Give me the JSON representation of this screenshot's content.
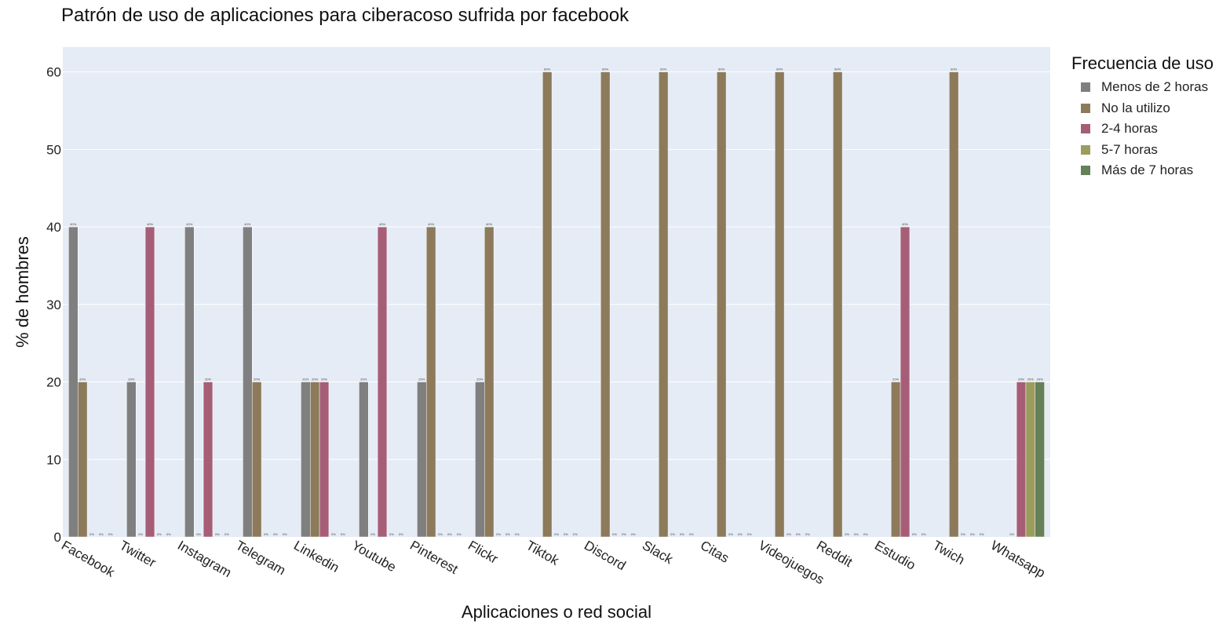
{
  "chart_data": {
    "type": "bar",
    "title": "Patrón de uso de aplicaciones para ciberacoso sufrida por facebook",
    "xlabel": "Aplicaciones o red social",
    "ylabel": "% de hombres",
    "ylim": [
      0,
      63.2
    ],
    "yticks": [
      0,
      10,
      20,
      30,
      40,
      50,
      60
    ],
    "grid": true,
    "legend_title": "Frecuencia de uso",
    "legend_position": "right",
    "categories": [
      "Facebook",
      "Twitter",
      "Instagram",
      "Telegram",
      "Linkedin",
      "Youtube",
      "Pinterest",
      "Flickr",
      "Tiktok",
      "Discord",
      "Slack",
      "Citas",
      "Videojuegos",
      "Reddit",
      "Estudio",
      "Twich",
      "Whatsapp"
    ],
    "series": [
      {
        "name": "Menos de 2 horas",
        "color": "#7f7f7f",
        "values": [
          40,
          20,
          40,
          40,
          20,
          20,
          20,
          20,
          null,
          null,
          null,
          null,
          null,
          null,
          null,
          null,
          null
        ],
        "labels": [
          "40%",
          "20%",
          "40%",
          "40%",
          "20%",
          "20%",
          "20%",
          "20%",
          "",
          "",
          "",
          "",
          "",
          "",
          "",
          "",
          ""
        ]
      },
      {
        "name": "No la utilizo",
        "color": "#8c7a5b",
        "values": [
          20,
          0,
          0,
          20,
          20,
          0,
          40,
          40,
          60,
          60,
          60,
          60,
          60,
          60,
          20,
          60,
          0
        ],
        "labels": [
          "20%",
          "0%",
          "0%",
          "20%",
          "20%",
          "0%",
          "40%",
          "40%",
          "60%",
          "60%",
          "60%",
          "60%",
          "60%",
          "60%",
          "20%",
          "60%",
          "0%"
        ]
      },
      {
        "name": "2-4 horas",
        "color": "#a65e76",
        "values": [
          0,
          40,
          20,
          0,
          20,
          40,
          0,
          0,
          0,
          0,
          0,
          0,
          0,
          0,
          40,
          0,
          20
        ],
        "labels": [
          "0%",
          "40%",
          "20%",
          "0%",
          "20%",
          "40%",
          "0%",
          "0%",
          "0%",
          "0%",
          "0%",
          "0%",
          "0%",
          "0%",
          "40%",
          "0%",
          "20%"
        ]
      },
      {
        "name": "5-7 horas",
        "color": "#9c9c5e",
        "values": [
          0,
          0,
          0,
          0,
          0,
          0,
          0,
          0,
          0,
          0,
          0,
          0,
          0,
          0,
          0,
          0,
          20
        ],
        "labels": [
          "0%",
          "0%",
          "0%",
          "0%",
          "0%",
          "0%",
          "0%",
          "0%",
          "0%",
          "0%",
          "0%",
          "0%",
          "0%",
          "0%",
          "0%",
          "0%",
          "20%"
        ]
      },
      {
        "name": "Más de 7 horas",
        "color": "#668059",
        "values": [
          0,
          0,
          0,
          0,
          0,
          0,
          0,
          0,
          0,
          0,
          0,
          0,
          0,
          0,
          0,
          0,
          20
        ],
        "labels": [
          "0%",
          "0%",
          "0%",
          "0%",
          "0%",
          "0%",
          "0%",
          "0%",
          "0%",
          "0%",
          "0%",
          "0%",
          "0%",
          "0%",
          "0%",
          "0%",
          "20%"
        ]
      }
    ]
  }
}
